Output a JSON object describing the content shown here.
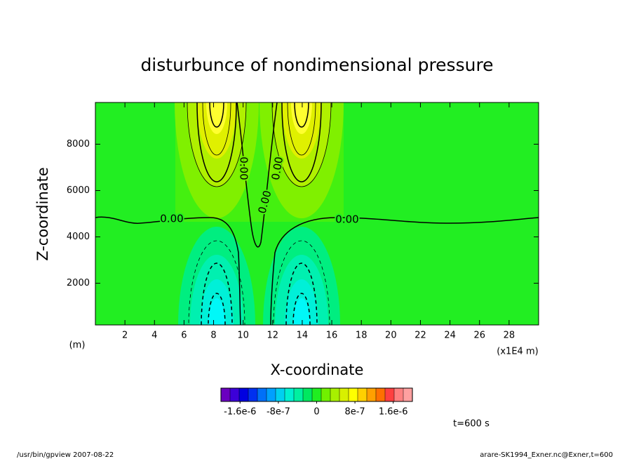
{
  "chart_data": {
    "type": "contour",
    "title": "disturbunce of nondimensional pressure",
    "xlabel": "X-coordinate",
    "ylabel": "Z-coordinate",
    "x_unit": "(m)",
    "x_scale_label": "(x1E4 m)",
    "xlim": [
      0,
      30
    ],
    "xticks": [
      2,
      4,
      6,
      8,
      10,
      12,
      14,
      16,
      18,
      20,
      22,
      24,
      26,
      28
    ],
    "ylim": [
      200,
      9800
    ],
    "yticks": [
      2000,
      4000,
      6000,
      8000
    ],
    "contour_labels": [
      "0.00",
      "0.00",
      "0.00",
      "0.00",
      "0.00"
    ],
    "colorbar": {
      "lim": [
        -2e-06,
        2e-06
      ],
      "ticks": [
        {
          "value": -1.6e-06,
          "label": "-1.6e-6"
        },
        {
          "value": -8e-07,
          "label": "-8e-7"
        },
        0,
        {
          "value": 8e-07,
          "label": "8e-7"
        },
        {
          "value": 1.6e-06,
          "label": "1.6e-6"
        }
      ],
      "colors": [
        "#6a00c0",
        "#3c00d8",
        "#0000e0",
        "#0030f0",
        "#0070f8",
        "#00a0ff",
        "#00d0f0",
        "#00f0d0",
        "#00f0a0",
        "#00e860",
        "#20ee20",
        "#70f000",
        "#a8f000",
        "#d8f000",
        "#ffff00",
        "#ffd000",
        "#ffa000",
        "#ff7000",
        "#ff4040",
        "#ff8080",
        "#ffa0a0"
      ]
    },
    "time_label": "t=600 s",
    "footer_left": "/usr/bin/gpview   2007-08-22",
    "footer_right": "arare-SK1994_Exner.nc@Exner,t=600"
  }
}
